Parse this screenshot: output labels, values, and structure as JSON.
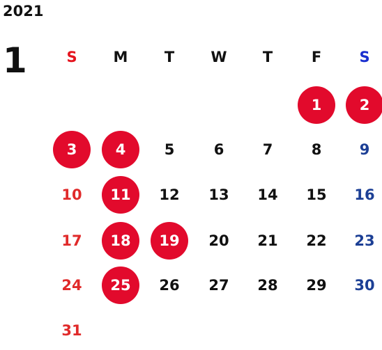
{
  "calendar": {
    "year": "2021",
    "month": "1",
    "weekdays": [
      "S",
      "M",
      "T",
      "W",
      "T",
      "F",
      "S"
    ],
    "weeks": [
      [
        "",
        "",
        "",
        "",
        "",
        "1",
        "2"
      ],
      [
        "3",
        "4",
        "5",
        "6",
        "7",
        "8",
        "9"
      ],
      [
        "10",
        "11",
        "12",
        "13",
        "14",
        "15",
        "16"
      ],
      [
        "17",
        "18",
        "19",
        "20",
        "21",
        "22",
        "23"
      ],
      [
        "24",
        "25",
        "26",
        "27",
        "28",
        "29",
        "30"
      ],
      [
        "31",
        "",
        "",
        "",
        "",
        "",
        ""
      ]
    ],
    "highlighted_days": [
      "1",
      "2",
      "3",
      "4",
      "11",
      "18",
      "19",
      "25"
    ],
    "colors": {
      "sunday": "#e02a2a",
      "saturday": "#1c3f95",
      "weekday": "#111111",
      "highlight_fill": "#e20a2c",
      "highlight_text": "#ffffff"
    }
  }
}
